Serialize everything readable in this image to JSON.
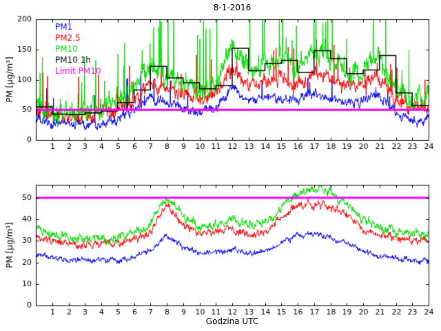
{
  "title": "8-1-2016",
  "colors": {
    "pm1": "#0000ff",
    "pm25": "#ff0000",
    "pm10": "#00dd00",
    "pm10_1h": "#000000",
    "limit": "#ff00ff",
    "axis": "#000000",
    "background": "#ffffff"
  },
  "chart_data": [
    {
      "type": "line",
      "xlabel": "",
      "ylabel": "PM [μg/m³]",
      "xlim": [
        0,
        24
      ],
      "ylim": [
        0,
        200
      ],
      "xticks": [
        1,
        2,
        3,
        4,
        5,
        6,
        7,
        8,
        9,
        10,
        11,
        12,
        13,
        14,
        15,
        16,
        17,
        18,
        19,
        20,
        21,
        22,
        23,
        24
      ],
      "yticks": [
        0,
        50,
        100,
        150,
        200
      ],
      "grid": false,
      "legend_position": "top-left-inside",
      "legend": [
        {
          "label": "PM1",
          "color": "#0000ff"
        },
        {
          "label": "PM2.5",
          "color": "#ff0000"
        },
        {
          "label": "PM10",
          "color": "#00dd00"
        },
        {
          "label": "PM10 1h",
          "color": "#000000"
        },
        {
          "label": "Limit PM10",
          "color": "#ff00ff"
        }
      ],
      "anchor_hours": [
        0,
        1,
        2,
        3,
        4,
        5,
        6,
        7,
        8,
        9,
        10,
        11,
        12,
        13,
        14,
        15,
        16,
        17,
        18,
        19,
        20,
        21,
        22,
        23,
        24
      ],
      "series": [
        {
          "name": "PM1",
          "color": "#0000ff",
          "type": "noisy",
          "width": 1,
          "anchors": [
            34,
            27,
            26,
            28,
            30,
            36,
            48,
            72,
            58,
            52,
            48,
            52,
            82,
            64,
            70,
            72,
            62,
            78,
            70,
            60,
            63,
            76,
            44,
            33,
            36
          ],
          "noise": 10,
          "spike_prob": 0.025,
          "spike_amp": 55
        },
        {
          "name": "PM2.5",
          "color": "#ff0000",
          "type": "noisy",
          "width": 1,
          "anchors": [
            50,
            40,
            39,
            42,
            44,
            52,
            68,
            98,
            82,
            75,
            68,
            73,
            118,
            92,
            100,
            104,
            90,
            112,
            102,
            86,
            90,
            108,
            62,
            48,
            52
          ],
          "noise": 15,
          "spike_prob": 0.035,
          "spike_amp": 70
        },
        {
          "name": "PM10",
          "color": "#00dd00",
          "type": "noisy",
          "width": 1,
          "anchors": [
            62,
            48,
            46,
            50,
            52,
            62,
            85,
            122,
            103,
            95,
            86,
            92,
            152,
            116,
            128,
            132,
            113,
            150,
            136,
            111,
            116,
            141,
            80,
            62,
            68
          ],
          "noise": 22,
          "spike_prob": 0.05,
          "spike_amp": 120
        },
        {
          "name": "PM10 1h",
          "color": "#000000",
          "type": "step",
          "width": 1.5,
          "values": [
            55,
            43,
            42,
            45,
            48,
            62,
            83,
            122,
            103,
            95,
            85,
            90,
            152,
            115,
            127,
            132,
            112,
            148,
            135,
            110,
            116,
            140,
            78,
            57
          ]
        },
        {
          "name": "Limit PM10",
          "color": "#ff00ff",
          "type": "hline",
          "value": 50,
          "width": 3
        }
      ]
    },
    {
      "type": "line",
      "xlabel": "Godzina UTC",
      "ylabel": "PM [μg/m³]",
      "xlim": [
        0,
        24
      ],
      "ylim": [
        0,
        56
      ],
      "xticks": [
        1,
        2,
        3,
        4,
        5,
        6,
        7,
        8,
        9,
        10,
        11,
        12,
        13,
        14,
        15,
        16,
        17,
        18,
        19,
        20,
        21,
        22,
        23,
        24
      ],
      "yticks": [
        0,
        10,
        20,
        30,
        40,
        50
      ],
      "grid": false,
      "anchor_hours": [
        0,
        1,
        2,
        3,
        4,
        5,
        6,
        7,
        8,
        9,
        10,
        11,
        12,
        13,
        14,
        15,
        16,
        17,
        18,
        19,
        20,
        21,
        22,
        23,
        24
      ],
      "series": [
        {
          "name": "PM1",
          "color": "#0000ff",
          "type": "noisy",
          "width": 1,
          "anchors": [
            24,
            22,
            21,
            21,
            21,
            21,
            22,
            26,
            33,
            27,
            24,
            25,
            26,
            24,
            25,
            29,
            32,
            33,
            32,
            29,
            25,
            23,
            22,
            21,
            20
          ],
          "noise": 1.6,
          "spike_prob": 0,
          "spike_amp": 0
        },
        {
          "name": "PM2.5",
          "color": "#ff0000",
          "type": "noisy",
          "width": 1,
          "anchors": [
            32,
            30,
            29,
            28,
            28,
            29,
            30,
            34,
            47,
            38,
            33,
            34,
            36,
            33,
            34,
            41,
            46,
            47,
            46,
            42,
            35,
            33,
            31,
            30,
            30
          ],
          "noise": 2.2,
          "spike_prob": 0,
          "spike_amp": 0
        },
        {
          "name": "PM10",
          "color": "#00dd00",
          "type": "noisy",
          "width": 1,
          "anchors": [
            36,
            33,
            32,
            31,
            31,
            32,
            33,
            38,
            51,
            42,
            36,
            38,
            40,
            37,
            38,
            45,
            52,
            54,
            53,
            47,
            40,
            37,
            35,
            34,
            33
          ],
          "noise": 2.6,
          "spike_prob": 0,
          "spike_amp": 0
        },
        {
          "name": "Limit PM10",
          "color": "#ff00ff",
          "type": "hline",
          "value": 50,
          "width": 3
        }
      ]
    }
  ]
}
